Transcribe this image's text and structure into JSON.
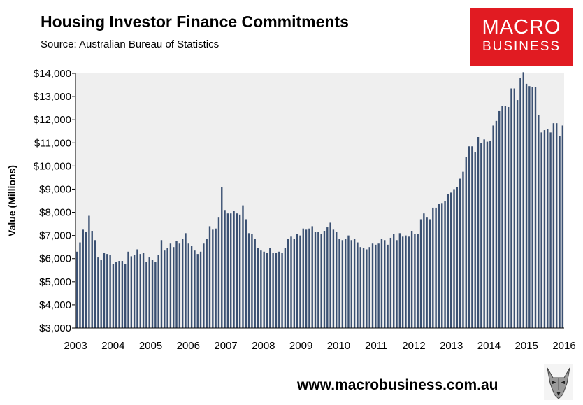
{
  "header": {
    "title": "Housing Investor Finance Commitments",
    "subtitle": "Source: Australian Bureau of Statistics"
  },
  "logo": {
    "line1": "MACRO",
    "line2": "BUSINESS"
  },
  "footer": {
    "url": "www.macrobusiness.com.au",
    "mascot_icon": "wolf-icon"
  },
  "colors": {
    "bar": "#3a5072",
    "plot_bg": "#efefef",
    "brand": "#e11b22"
  },
  "chart_data": {
    "type": "bar",
    "title": "Housing Investor Finance Commitments",
    "ylabel": "Value (Millions)",
    "xlabel": "",
    "ylim": [
      3000,
      14000
    ],
    "yticks": [
      3000,
      4000,
      5000,
      6000,
      7000,
      8000,
      9000,
      10000,
      11000,
      12000,
      13000,
      14000
    ],
    "ytick_labels": [
      "$3,000",
      "$4,000",
      "$5,000",
      "$6,000",
      "$7,000",
      "$8,000",
      "$9,000",
      "$10,000",
      "$11,000",
      "$12,000",
      "$13,000",
      "$14,000"
    ],
    "xtick_labels": [
      "2003",
      "2004",
      "2005",
      "2006",
      "2007",
      "2008",
      "2009",
      "2010",
      "2011",
      "2012",
      "2013",
      "2014",
      "2015",
      "2016"
    ],
    "grid": false,
    "x_start": "2003-01",
    "frequency": "monthly",
    "series": [
      {
        "values": [
          6300,
          6700,
          7250,
          7150,
          7850,
          7200,
          6800,
          6050,
          5950,
          6250,
          6200,
          6150,
          5750,
          5850,
          5900,
          5900,
          5750,
          6300,
          6100,
          6150,
          6400,
          6200,
          6250,
          5850,
          6050,
          5950,
          5850,
          6150,
          6800,
          6350,
          6450,
          6650,
          6500,
          6750,
          6650,
          6850,
          7100,
          6650,
          6550,
          6350,
          6200,
          6300,
          6650,
          6850,
          7400,
          7250,
          7300,
          7800,
          9100,
          8100,
          7950,
          7950,
          8050,
          7950,
          7900,
          8300,
          7700,
          7100,
          7050,
          6850,
          6450,
          6350,
          6300,
          6250,
          6450,
          6250,
          6250,
          6300,
          6250,
          6450,
          6850,
          6950,
          6850,
          7050,
          7000,
          7300,
          7250,
          7300,
          7400,
          7150,
          7150,
          7050,
          7200,
          7350,
          7550,
          7250,
          7150,
          6850,
          6800,
          6850,
          7000,
          6800,
          6850,
          6700,
          6500,
          6450,
          6400,
          6500,
          6650,
          6600,
          6650,
          6850,
          6800,
          6600,
          6900,
          7050,
          6800,
          7100,
          6950,
          7000,
          6950,
          7200,
          7050,
          7050,
          7700,
          7950,
          7800,
          7700,
          8200,
          8200,
          8350,
          8400,
          8500,
          8800,
          8850,
          9000,
          9100,
          9450,
          9750,
          10400,
          10850,
          10850,
          10600,
          11250,
          11000,
          11150,
          11050,
          11100,
          11750,
          11950,
          12400,
          12600,
          12600,
          12550,
          13350,
          13350,
          12850,
          13800,
          14050,
          13550,
          13450,
          13400,
          13400,
          12200,
          11450,
          11550,
          11600,
          11450,
          11850,
          11850,
          11300,
          11750
        ]
      }
    ]
  }
}
